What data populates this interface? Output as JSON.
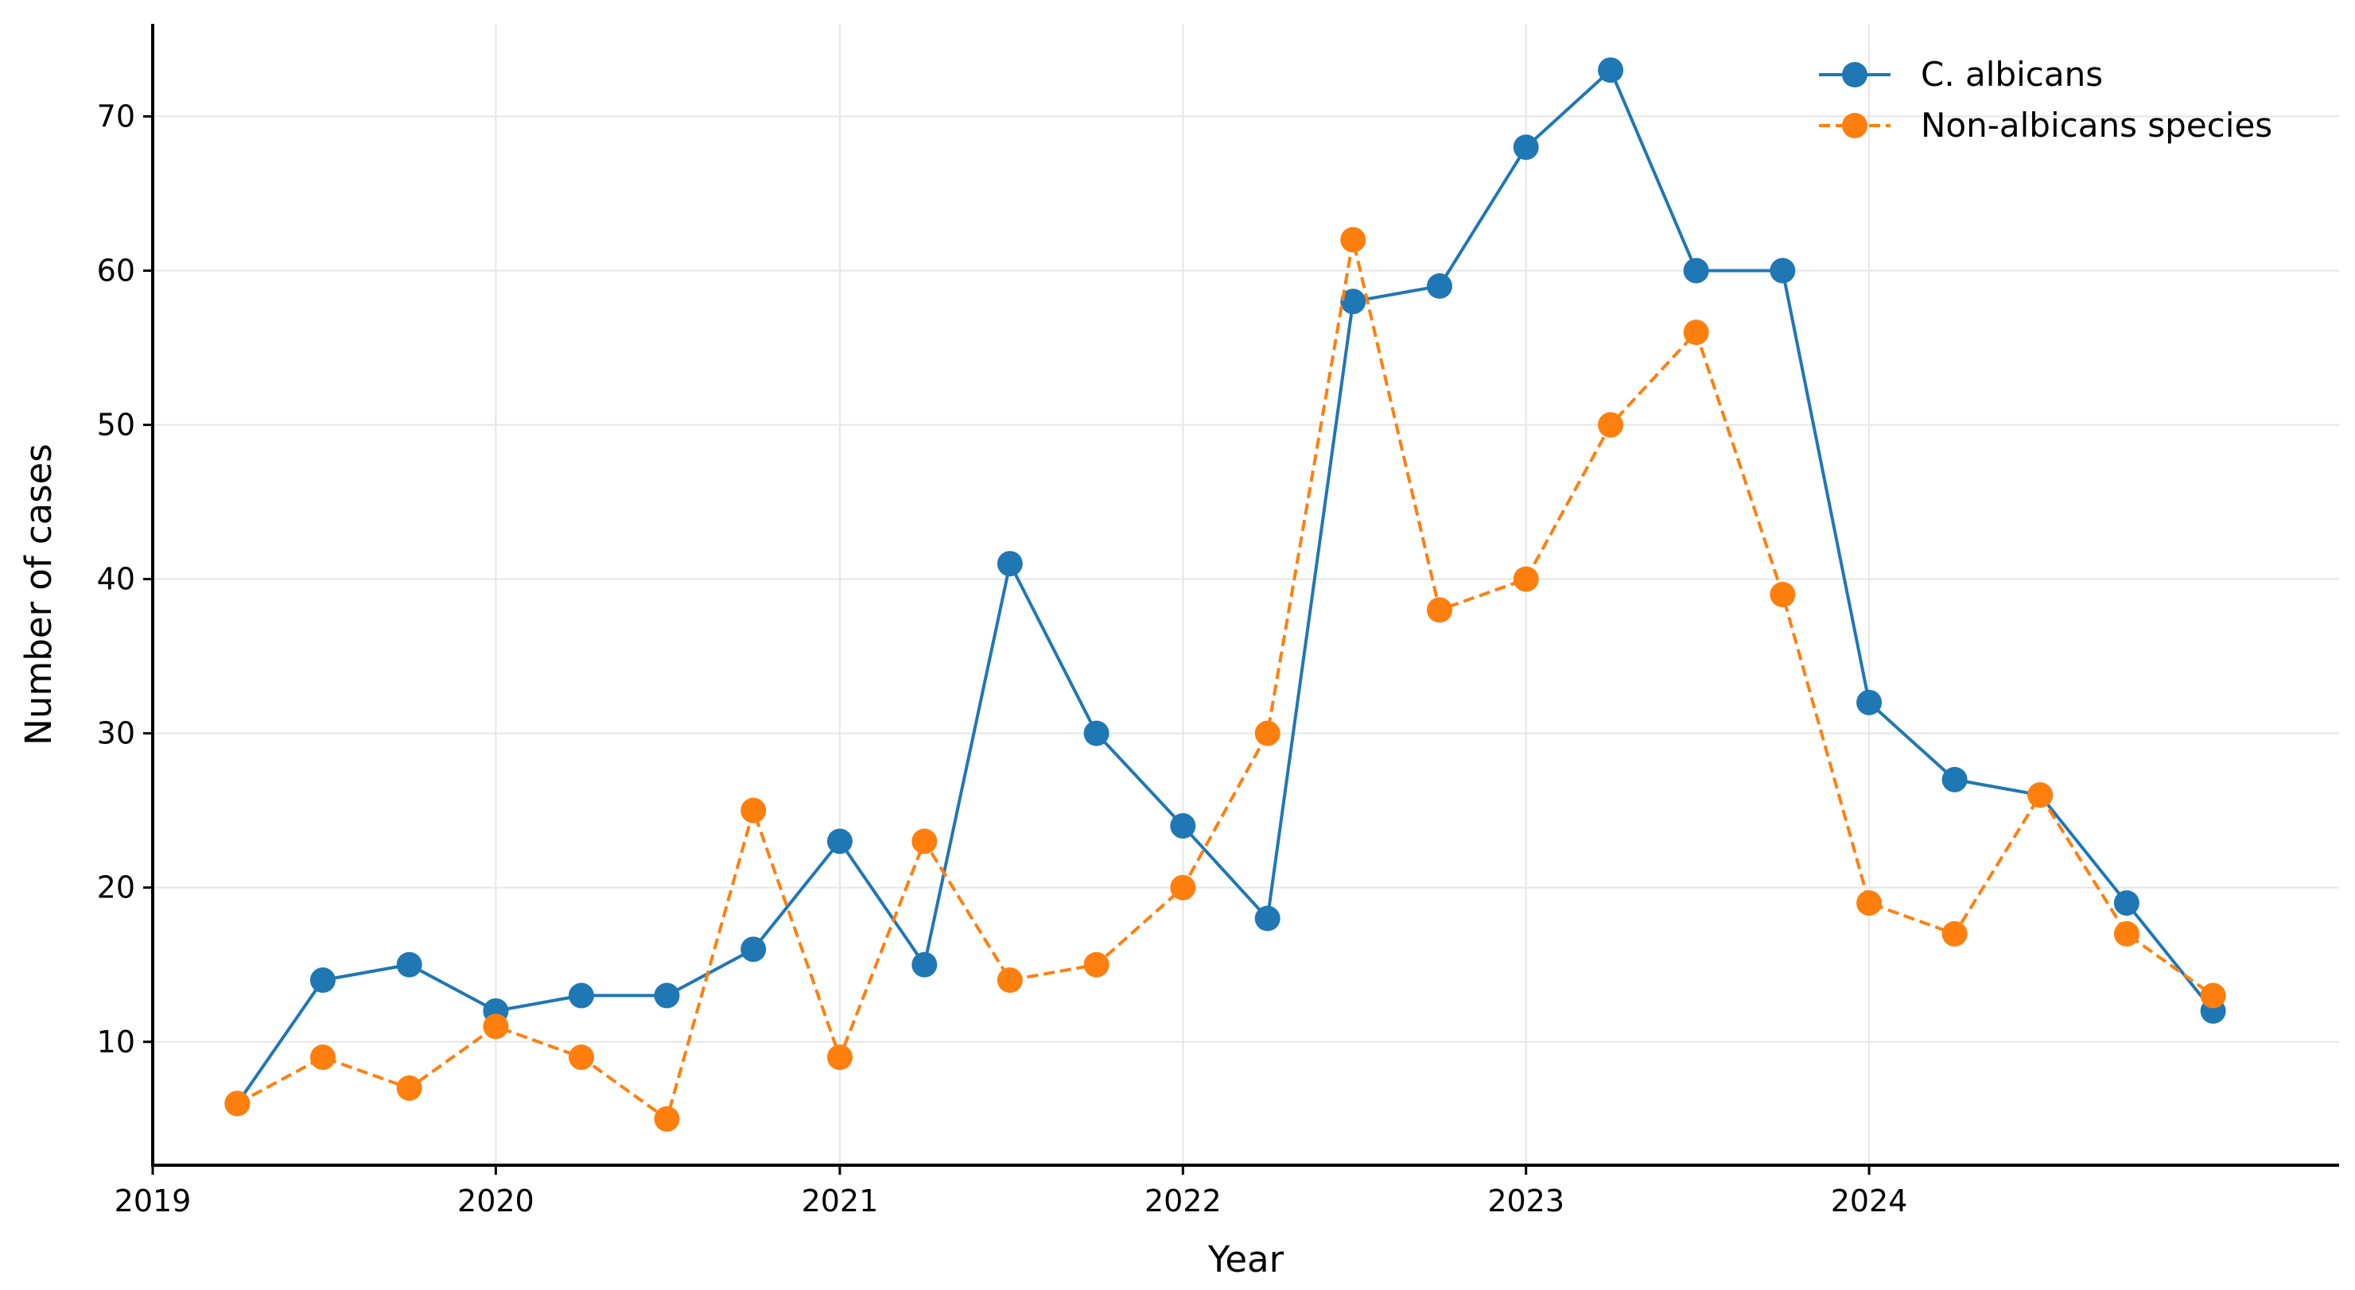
{
  "chart_data": {
    "type": "line",
    "title": "",
    "xlabel": "Year",
    "ylabel": "Number of cases",
    "x_tick_labels": [
      "2019",
      "2020",
      "2021",
      "2022",
      "2023",
      "2024"
    ],
    "y_tick_labels": [
      "10",
      "20",
      "30",
      "40",
      "50",
      "60",
      "70"
    ],
    "xlim": [
      "2019-01-01",
      "2025-05-15"
    ],
    "ylim": [
      2,
      76
    ],
    "grid": true,
    "legend_position": "top-right",
    "x": [
      "2019-04-01",
      "2019-07-01",
      "2019-10-01",
      "2020-01-01",
      "2020-04-01",
      "2020-07-01",
      "2020-10-01",
      "2021-01-01",
      "2021-04-01",
      "2021-07-01",
      "2021-10-01",
      "2022-01-01",
      "2022-04-01",
      "2022-07-01",
      "2022-10-01",
      "2023-01-01",
      "2023-04-01",
      "2023-07-01",
      "2023-10-01",
      "2024-01-01",
      "2024-04-01",
      "2024-07-01",
      "2024-10-01",
      "2025-01-01"
    ],
    "series": [
      {
        "name": "C. albicans",
        "color": "#1f77b4",
        "line_style": "solid",
        "marker": "circle",
        "values": [
          6,
          14,
          15,
          12,
          13,
          13,
          16,
          23,
          15,
          41,
          30,
          24,
          18,
          58,
          59,
          68,
          73,
          60,
          60,
          32,
          27,
          26,
          19,
          12
        ]
      },
      {
        "name": "Non-albicans species",
        "color": "#ff7f0e",
        "line_style": "dashed",
        "marker": "circle",
        "values": [
          6,
          9,
          7,
          11,
          9,
          5,
          25,
          9,
          23,
          14,
          15,
          20,
          30,
          62,
          38,
          40,
          50,
          56,
          39,
          19,
          17,
          26,
          17,
          13
        ]
      }
    ]
  }
}
